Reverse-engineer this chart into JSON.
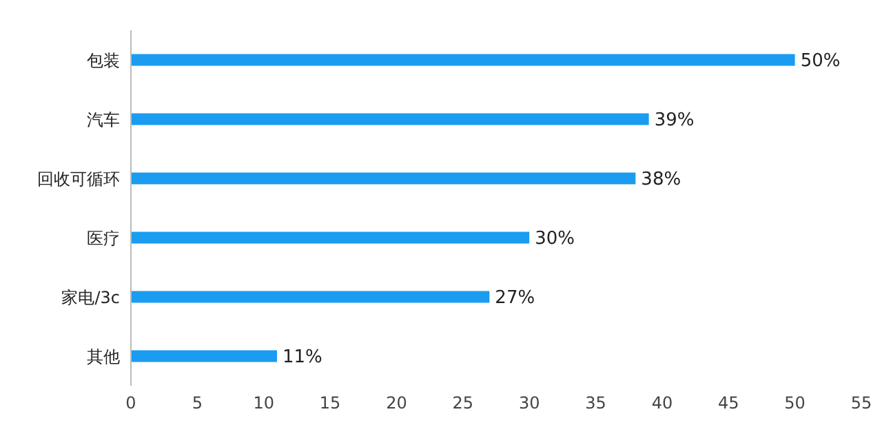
{
  "chart_data": {
    "type": "bar",
    "orientation": "horizontal",
    "categories": [
      "包装",
      "汽车",
      "回收可循环",
      "医疗",
      "家电/3c",
      "其他"
    ],
    "values": [
      50,
      39,
      38,
      30,
      27,
      11
    ],
    "value_labels": [
      "50%",
      "39%",
      "38%",
      "30%",
      "27%",
      "11%"
    ],
    "color": "#1a9cf0",
    "xlim": [
      0,
      55
    ],
    "xticks": [
      0,
      5,
      10,
      15,
      20,
      25,
      30,
      35,
      40,
      45,
      50,
      55
    ],
    "grid": false,
    "legend": false
  }
}
